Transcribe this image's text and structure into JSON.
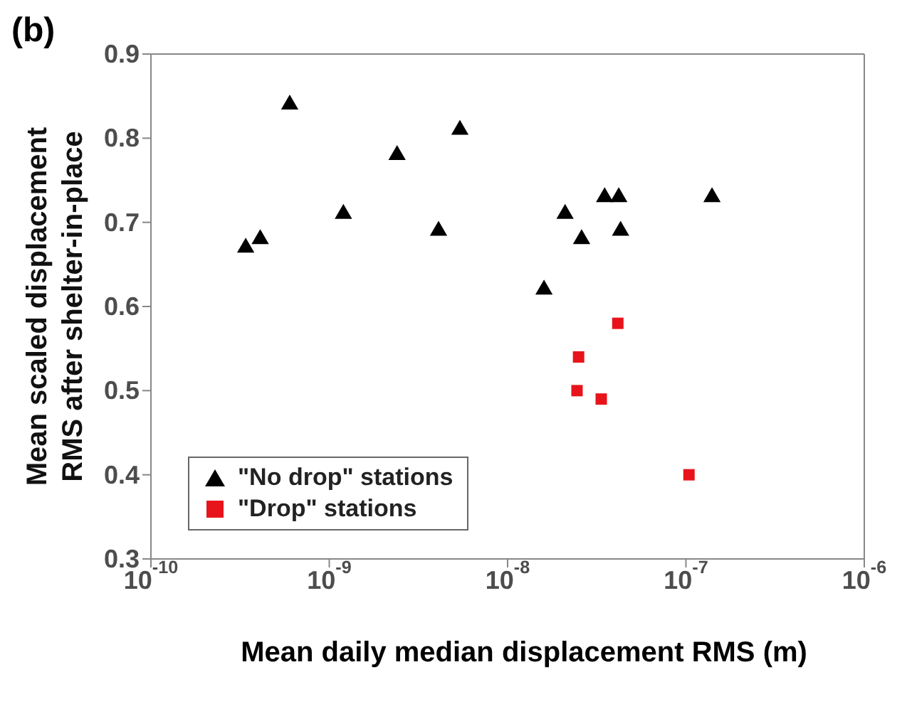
{
  "chart_data": {
    "type": "scatter",
    "title": "(b)",
    "xlabel": "Mean daily median displacement RMS (m)",
    "ylabel": "Mean scaled displacement RMS after shelter-in-place",
    "log": "x",
    "xlim": [
      1e-10,
      1e-06
    ],
    "xticks": [
      {
        "value": 1e-10,
        "label": "10$^{-10}$"
      },
      {
        "value": 1e-09,
        "label": "10$^{-9}$"
      },
      {
        "value": 1e-08,
        "label": "10$^{-8}$"
      },
      {
        "value": 1e-07,
        "label": "10$^{-7}$"
      },
      {
        "value": 1e-06,
        "label": "10$^{-6}$"
      }
    ],
    "ylim": [
      0.3,
      0.9
    ],
    "yticks": [
      0.3,
      0.4,
      0.5,
      0.6,
      0.7,
      0.8,
      0.9
    ],
    "grid": false,
    "legend": "bottom left",
    "series": [
      {
        "name": "\"No drop\" stations",
        "color": "#000000",
        "marker": "triangle",
        "x": [
          3.4e-10,
          4.1e-10,
          6e-10,
          1.2e-09,
          2.4e-09,
          4.1e-09,
          5.4e-09,
          1.6e-08,
          2.1e-08,
          2.6e-08,
          3.5e-08,
          4.2e-08,
          4.3e-08,
          1.4e-07
        ],
        "values": [
          0.67,
          0.68,
          0.84,
          0.71,
          0.78,
          0.69,
          0.81,
          0.62,
          0.71,
          0.68,
          0.73,
          0.73,
          0.69,
          0.73
        ]
      },
      {
        "name": "\"Drop\" stations",
        "color": "#e8141b",
        "marker": "square",
        "x": [
          4.15e-08,
          2.5e-08,
          2.45e-08,
          3.35e-08,
          1.04e-07
        ],
        "values": [
          0.58,
          0.54,
          0.5,
          0.49,
          0.4
        ]
      }
    ]
  }
}
